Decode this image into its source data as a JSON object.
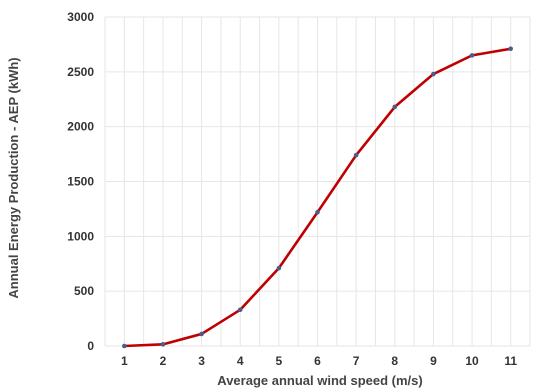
{
  "chart_data": {
    "type": "line",
    "title": "",
    "xlabel": "Average annual wind speed (m/s)",
    "ylabel": "Annual Energy Production - AEP (kWh)",
    "x": [
      1,
      2,
      3,
      4,
      5,
      6,
      7,
      8,
      9,
      10,
      11
    ],
    "series": [
      {
        "values": [
          0,
          15,
          110,
          330,
          710,
          1220,
          1740,
          2180,
          2480,
          2650,
          2710
        ],
        "line_color": "#c00000",
        "marker_color": "#4a5d8c"
      }
    ],
    "xlim": [
      0.5,
      11.5
    ],
    "ylim": [
      0,
      3000
    ],
    "yticks": [
      0,
      500,
      1000,
      1500,
      2000,
      2500,
      3000
    ],
    "xticks": [
      1,
      2,
      3,
      4,
      5,
      6,
      7,
      8,
      9,
      10,
      11
    ],
    "grid": {
      "horizontal": true,
      "vertical": true
    },
    "legend": "none"
  }
}
